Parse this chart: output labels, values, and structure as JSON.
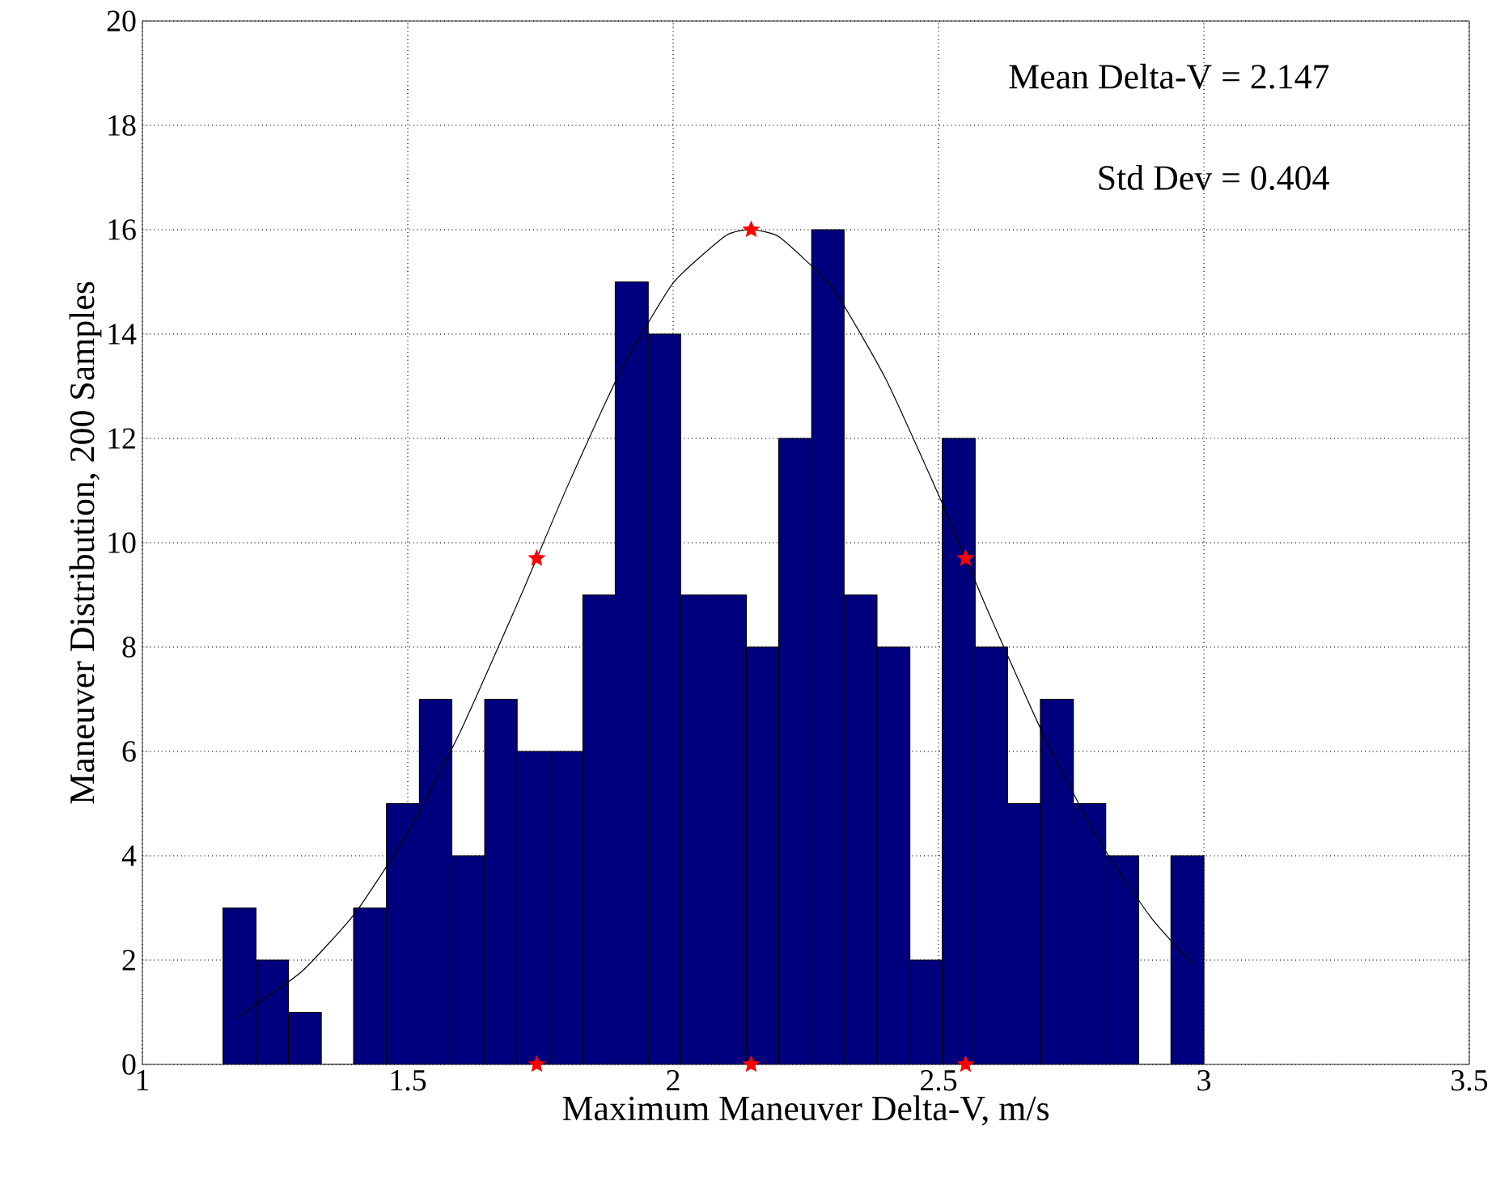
{
  "chart_data": {
    "type": "histogram",
    "xlabel": "Maximum Maneuver Delta-V, m/s",
    "ylabel": "Maneuver Distribution, 200 Samples",
    "bins": [
      1.152,
      1.214,
      1.275,
      1.337,
      1.398,
      1.46,
      1.522,
      1.583,
      1.645,
      1.706,
      1.768,
      1.83,
      1.891,
      1.953,
      2.014,
      2.076,
      2.138,
      2.199,
      2.261,
      2.322,
      2.384,
      2.446,
      2.507,
      2.569,
      2.63,
      2.692,
      2.754,
      2.815,
      2.877,
      2.938,
      3.0
    ],
    "values": [
      3,
      2,
      1,
      0,
      3,
      5,
      7,
      4,
      7,
      6,
      6,
      9,
      15,
      14,
      9,
      9,
      8,
      12,
      16,
      9,
      8,
      2,
      12,
      8,
      5,
      7,
      5,
      4,
      0,
      4
    ],
    "color": "#00007f",
    "series": [
      {
        "type": "line",
        "color": "#000000",
        "x": [
          1.18,
          1.3,
          1.4,
          1.5,
          1.6,
          1.7,
          1.743,
          1.8,
          1.9,
          2.0,
          2.1,
          2.147,
          2.2,
          2.3,
          2.4,
          2.5,
          2.551,
          2.6,
          2.7,
          2.8,
          2.9,
          2.98
        ],
        "values": [
          0.91,
          1.78,
          2.89,
          4.44,
          6.4,
          8.68,
          9.7,
          11.06,
          13.27,
          14.98,
          15.89,
          16,
          15.86,
          14.89,
          13.15,
          10.92,
          9.7,
          8.53,
          6.27,
          4.33,
          2.82,
          1.91
        ]
      },
      {
        "type": "scatter",
        "color": "#ff0000",
        "marker": "star",
        "x": [
          1.743,
          2.147,
          2.551,
          1.743,
          2.147,
          2.551
        ],
        "values": [
          9.7,
          16,
          9.7,
          0,
          0,
          0
        ]
      }
    ],
    "annotations": [
      "Mean Delta-V = 2.147",
      "Std Dev = 0.404"
    ],
    "xlim": [
      1,
      3.5
    ],
    "ylim": [
      0,
      20
    ],
    "xticks": [
      1,
      1.5,
      2,
      2.5,
      3,
      3.5
    ],
    "yticks": [
      0,
      2,
      4,
      6,
      8,
      10,
      12,
      14,
      16,
      18,
      20
    ],
    "grid": true
  }
}
